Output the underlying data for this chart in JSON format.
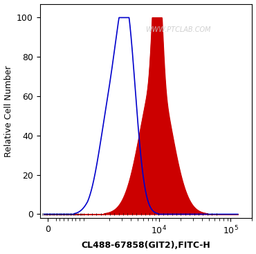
{
  "title": "",
  "xlabel": "CL488-67858(GIT2),FITC-H",
  "ylabel": "Relative Cell Number",
  "watermark": "WWW.PTCLAB.COM",
  "ylim": [
    -2,
    107
  ],
  "yticks": [
    0,
    20,
    40,
    60,
    80,
    100
  ],
  "blue_color": "#0000cc",
  "red_color": "#cc0000",
  "background_color": "#ffffff",
  "figsize": [
    3.7,
    3.67
  ],
  "dpi": 100,
  "linthresh": 1000,
  "linscale": 0.5
}
